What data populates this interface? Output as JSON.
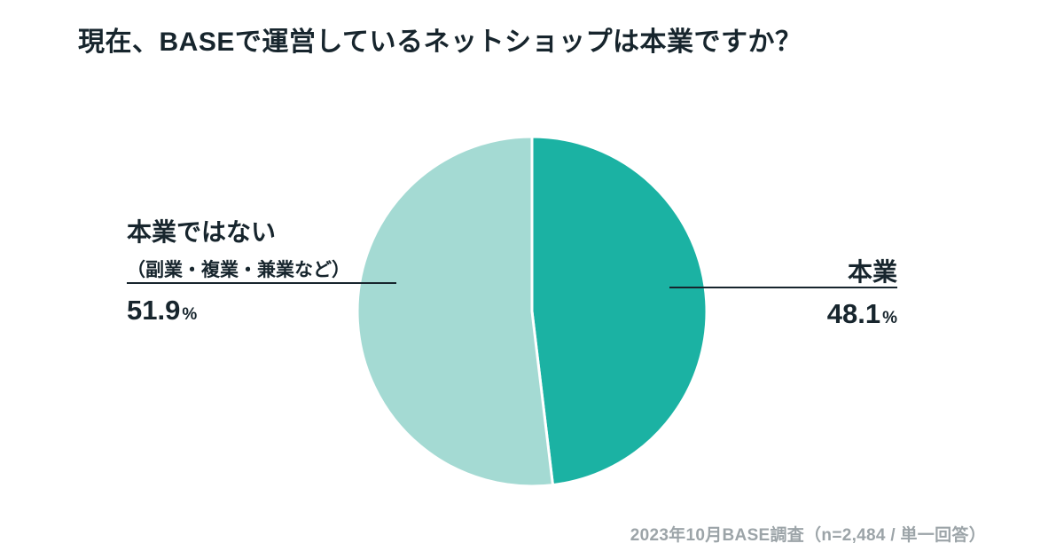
{
  "page": {
    "title": "現在、BASEで運営しているネットショップは本業ですか？",
    "source_note": "2023年10月BASE調査（n=2,484 / 単一回答）"
  },
  "chart_data": {
    "type": "pie",
    "title": "現在、BASEで運営しているネットショップは本業ですか？",
    "start_angle_deg": 0,
    "direction": "clockwise",
    "sample_note": "n=2,484",
    "answer_type": "単一回答",
    "survey_date": "2023年10月",
    "slices": [
      {
        "label": "本業",
        "value": 48.1,
        "unit": "%",
        "color": "#1bb2a3"
      },
      {
        "label": "本業ではない",
        "sublabel": "（副業・複業・兼業など）",
        "value": 51.9,
        "unit": "%",
        "color": "#a4dad3"
      }
    ],
    "divider_color": "#ffffff",
    "leader_line_color": "#17252d",
    "source_note": "2023年10月BASE調査（n=2,484 / 単一回答）"
  }
}
